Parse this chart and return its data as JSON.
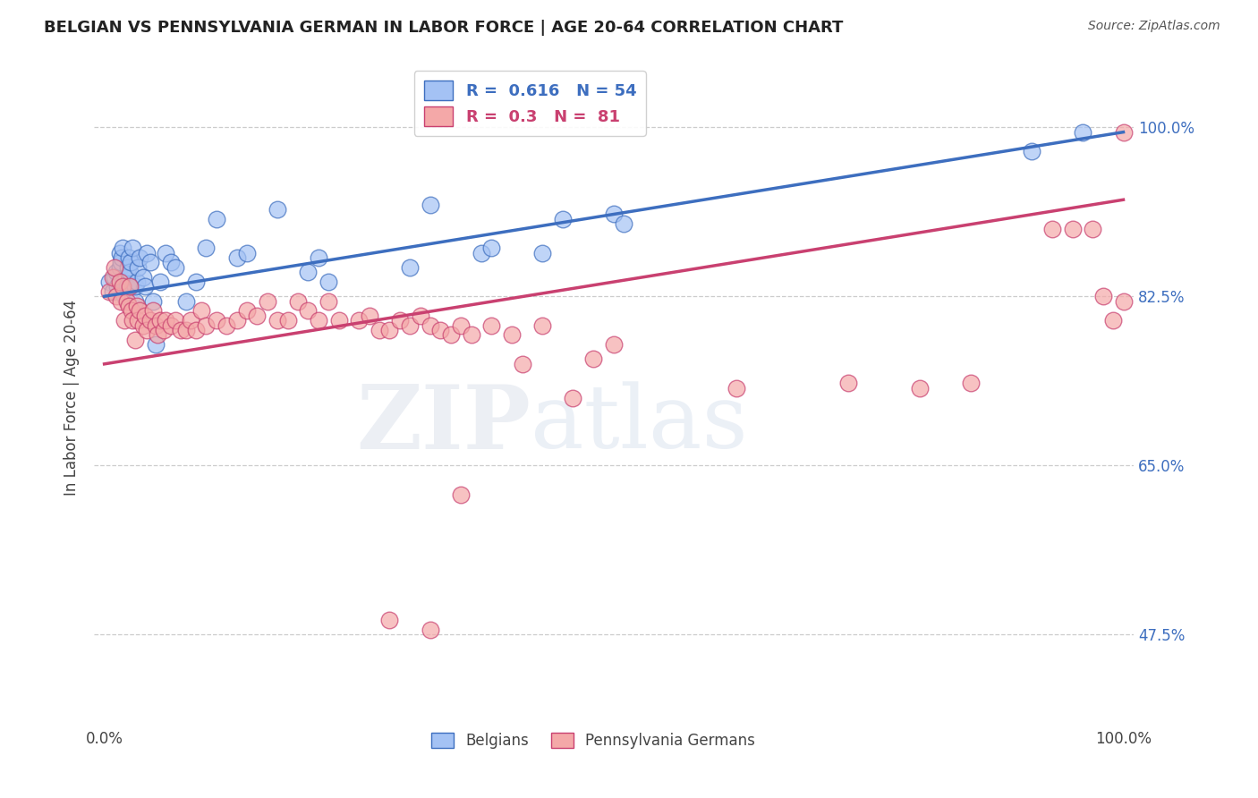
{
  "title": "BELGIAN VS PENNSYLVANIA GERMAN IN LABOR FORCE | AGE 20-64 CORRELATION CHART",
  "source": "Source: ZipAtlas.com",
  "ylabel": "In Labor Force | Age 20-64",
  "r_blue": 0.616,
  "n_blue": 54,
  "r_pink": 0.3,
  "n_pink": 81,
  "legend_label_blue": "Belgians",
  "legend_label_pink": "Pennsylvania Germans",
  "blue_color": "#a4c2f4",
  "pink_color": "#f4a8a8",
  "blue_line_color": "#3d6ebf",
  "pink_line_color": "#c94070",
  "blue_trend_start": 0.825,
  "blue_trend_end": 0.995,
  "pink_trend_start": 0.755,
  "pink_trend_end": 0.925,
  "ylim": [
    0.38,
    1.06
  ],
  "xlim": [
    -0.01,
    1.01
  ],
  "ytick_positions": [
    0.475,
    0.65,
    0.825,
    1.0
  ],
  "ytick_labels": [
    "47.5%",
    "65.0%",
    "82.5%",
    "100.0%"
  ],
  "grid_lines": [
    0.475,
    0.65,
    0.825,
    1.0
  ],
  "blue_x": [
    0.005,
    0.008,
    0.01,
    0.012,
    0.013,
    0.015,
    0.015,
    0.016,
    0.017,
    0.018,
    0.019,
    0.02,
    0.021,
    0.022,
    0.023,
    0.024,
    0.025,
    0.026,
    0.028,
    0.03,
    0.03,
    0.032,
    0.033,
    0.035,
    0.038,
    0.04,
    0.042,
    0.045,
    0.048,
    0.05,
    0.055,
    0.06,
    0.065,
    0.07,
    0.08,
    0.09,
    0.1,
    0.11,
    0.13,
    0.14,
    0.17,
    0.2,
    0.21,
    0.22,
    0.3,
    0.32,
    0.37,
    0.38,
    0.43,
    0.45,
    0.5,
    0.51,
    0.91,
    0.96
  ],
  "blue_y": [
    0.84,
    0.83,
    0.845,
    0.85,
    0.835,
    0.855,
    0.87,
    0.86,
    0.865,
    0.875,
    0.84,
    0.825,
    0.845,
    0.835,
    0.855,
    0.865,
    0.85,
    0.86,
    0.875,
    0.82,
    0.835,
    0.84,
    0.855,
    0.865,
    0.845,
    0.835,
    0.87,
    0.86,
    0.82,
    0.775,
    0.84,
    0.87,
    0.86,
    0.855,
    0.82,
    0.84,
    0.875,
    0.905,
    0.865,
    0.87,
    0.915,
    0.85,
    0.865,
    0.84,
    0.855,
    0.92,
    0.87,
    0.875,
    0.87,
    0.905,
    0.91,
    0.9,
    0.975,
    0.995
  ],
  "pink_x": [
    0.005,
    0.008,
    0.01,
    0.012,
    0.015,
    0.016,
    0.018,
    0.02,
    0.022,
    0.024,
    0.025,
    0.027,
    0.028,
    0.03,
    0.032,
    0.033,
    0.035,
    0.038,
    0.04,
    0.042,
    0.045,
    0.048,
    0.05,
    0.052,
    0.055,
    0.058,
    0.06,
    0.065,
    0.07,
    0.075,
    0.08,
    0.085,
    0.09,
    0.095,
    0.1,
    0.11,
    0.12,
    0.13,
    0.14,
    0.15,
    0.16,
    0.17,
    0.18,
    0.19,
    0.2,
    0.21,
    0.22,
    0.23,
    0.25,
    0.26,
    0.27,
    0.28,
    0.29,
    0.3,
    0.31,
    0.32,
    0.33,
    0.34,
    0.35,
    0.36,
    0.38,
    0.4,
    0.41,
    0.43,
    0.46,
    0.48,
    0.5,
    0.28,
    0.32,
    0.35,
    0.62,
    0.73,
    0.8,
    0.85,
    0.93,
    0.95,
    0.97,
    0.98,
    0.99,
    1.0,
    1.0
  ],
  "pink_y": [
    0.83,
    0.845,
    0.855,
    0.825,
    0.84,
    0.82,
    0.835,
    0.8,
    0.82,
    0.815,
    0.835,
    0.81,
    0.8,
    0.78,
    0.815,
    0.8,
    0.81,
    0.795,
    0.805,
    0.79,
    0.8,
    0.81,
    0.795,
    0.785,
    0.8,
    0.79,
    0.8,
    0.795,
    0.8,
    0.79,
    0.79,
    0.8,
    0.79,
    0.81,
    0.795,
    0.8,
    0.795,
    0.8,
    0.81,
    0.805,
    0.82,
    0.8,
    0.8,
    0.82,
    0.81,
    0.8,
    0.82,
    0.8,
    0.8,
    0.805,
    0.79,
    0.79,
    0.8,
    0.795,
    0.805,
    0.795,
    0.79,
    0.785,
    0.795,
    0.785,
    0.795,
    0.785,
    0.755,
    0.795,
    0.72,
    0.76,
    0.775,
    0.49,
    0.48,
    0.62,
    0.73,
    0.735,
    0.73,
    0.735,
    0.895,
    0.895,
    0.895,
    0.825,
    0.8,
    0.82,
    0.995
  ]
}
